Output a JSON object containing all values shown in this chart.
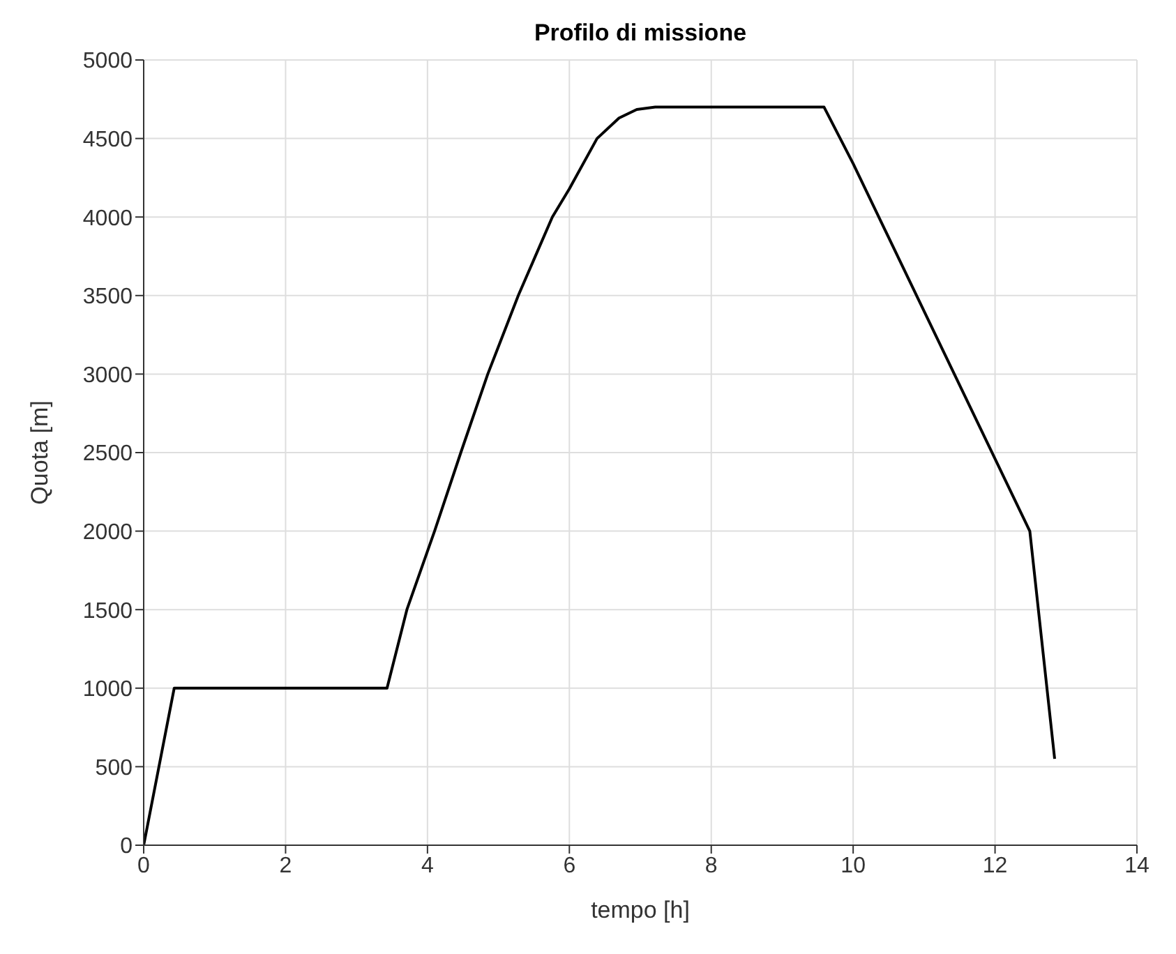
{
  "chart_data": {
    "type": "line",
    "title": "Profilo di missione",
    "xlabel": "tempo [h]",
    "ylabel": "Quota [m]",
    "series": [
      {
        "color": "#000000",
        "x": [
          0,
          0.43,
          3.43,
          3.71,
          4.1,
          4.47,
          4.85,
          5.28,
          5.76,
          6,
          6.39,
          6.7,
          6.95,
          7.21,
          9.59,
          10,
          12.49,
          12.84
        ],
        "values": [
          0,
          1000,
          1000,
          1500,
          2000,
          2500,
          3000,
          3500,
          4000,
          4180,
          4500,
          4630,
          4685,
          4700,
          4700,
          4340,
          2000,
          550
        ]
      }
    ],
    "xlim": [
      0,
      14
    ],
    "xticks": [
      0,
      2,
      4,
      6,
      8,
      10,
      12,
      14
    ],
    "ylim": [
      0,
      5000
    ],
    "yticks": [
      0,
      500,
      1000,
      1500,
      2000,
      2500,
      3000,
      3500,
      4000,
      4500,
      5000
    ],
    "grid": true,
    "marker": "none",
    "line_style": "solid"
  }
}
